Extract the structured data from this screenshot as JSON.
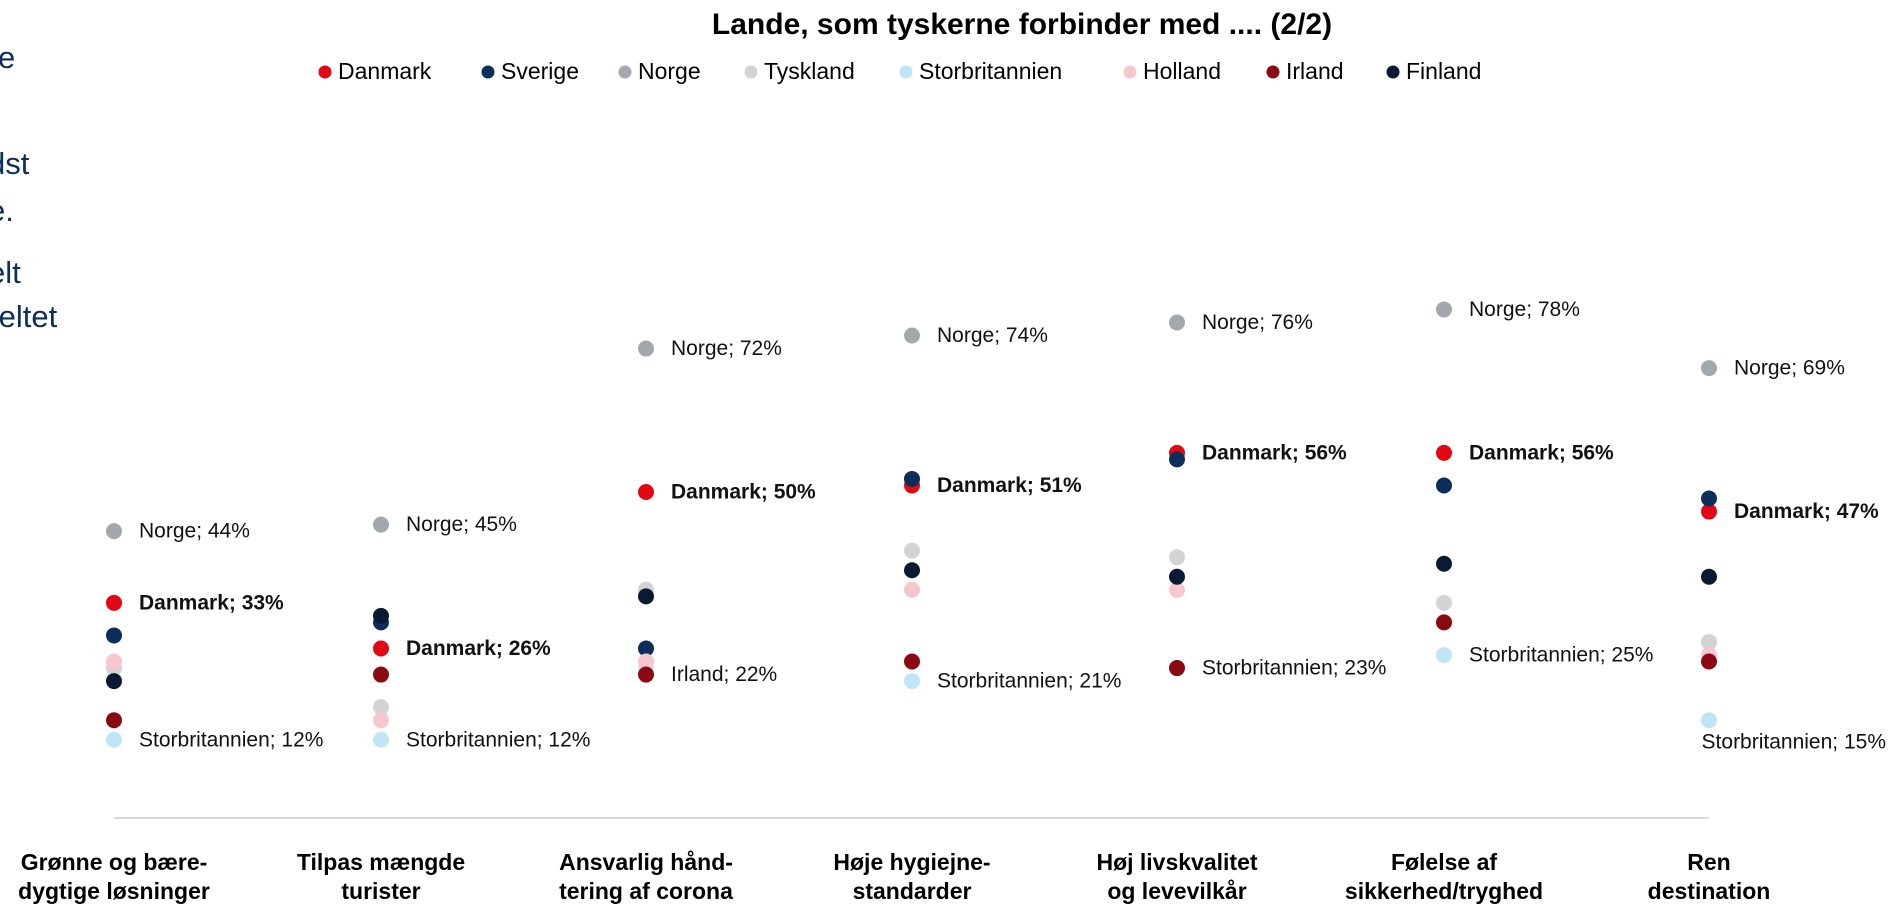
{
  "chart_data": {
    "type": "dot",
    "title": "Lande, som tyskerne forbinder med .... (2/2)",
    "side_text": [
      "e",
      "dst",
      "e.",
      "elt",
      "feltet"
    ],
    "categories": [
      "Grønne og bære-\ndygtige løsninger",
      "Tilpas mængde\nturister",
      "Ansvarlig hånd-\ntering af corona",
      "Høje hygiejne-\nstandarder",
      "Høj livskvalitet\nog levevilkår",
      "Følelse af\nsikkerhed/tryghed",
      "Ren\ndestination"
    ],
    "ylim": [
      0,
      100
    ],
    "series": [
      {
        "name": "Danmark",
        "color": "#e30613",
        "values": [
          33,
          26,
          50,
          51,
          56,
          56,
          47
        ],
        "value_labels": [
          "Danmark; 33%",
          "Danmark; 26%",
          "Danmark; 50%",
          "Danmark; 51%",
          "Danmark; 56%",
          "Danmark; 56%",
          "Danmark; 47%"
        ]
      },
      {
        "name": "Sverige",
        "color": "#0b2e5a",
        "values": [
          28,
          30,
          26,
          52,
          55,
          51,
          49
        ]
      },
      {
        "name": "Norge",
        "color": "#a2a8ad",
        "values": [
          44,
          45,
          72,
          74,
          76,
          78,
          69
        ],
        "value_labels": [
          "Norge; 44%",
          "Norge; 45%",
          "Norge; 72%",
          "Norge; 74%",
          "Norge; 76%",
          "Norge; 78%",
          "Norge; 69%"
        ]
      },
      {
        "name": "Tyskland",
        "color": "#d3d3d3",
        "values": [
          23,
          17,
          35,
          41,
          40,
          33,
          27
        ]
      },
      {
        "name": "Storbritannien",
        "color": "#bfe6f7",
        "values": [
          12,
          12,
          23,
          21,
          23,
          25,
          15
        ],
        "value_labels": [
          "Storbritannien; 12%",
          "Storbritannien; 12%",
          null,
          "Storbritannien; 21%",
          "Storbritannien; 23%",
          "Storbritannien; 25%",
          "Storbritannien; 15%"
        ]
      },
      {
        "name": "Holland",
        "color": "#f6c7cf",
        "values": [
          24,
          15,
          24,
          35,
          35,
          30,
          25
        ]
      },
      {
        "name": "Irland",
        "color": "#8b0a12",
        "values": [
          15,
          22,
          22,
          24,
          23,
          30,
          24
        ],
        "value_labels": [
          null,
          null,
          "Irland; 22%",
          null,
          null,
          null,
          null
        ]
      },
      {
        "name": "Finland",
        "color": "#0b1a33",
        "values": [
          21,
          31,
          34,
          38,
          37,
          39,
          37
        ]
      }
    ]
  }
}
